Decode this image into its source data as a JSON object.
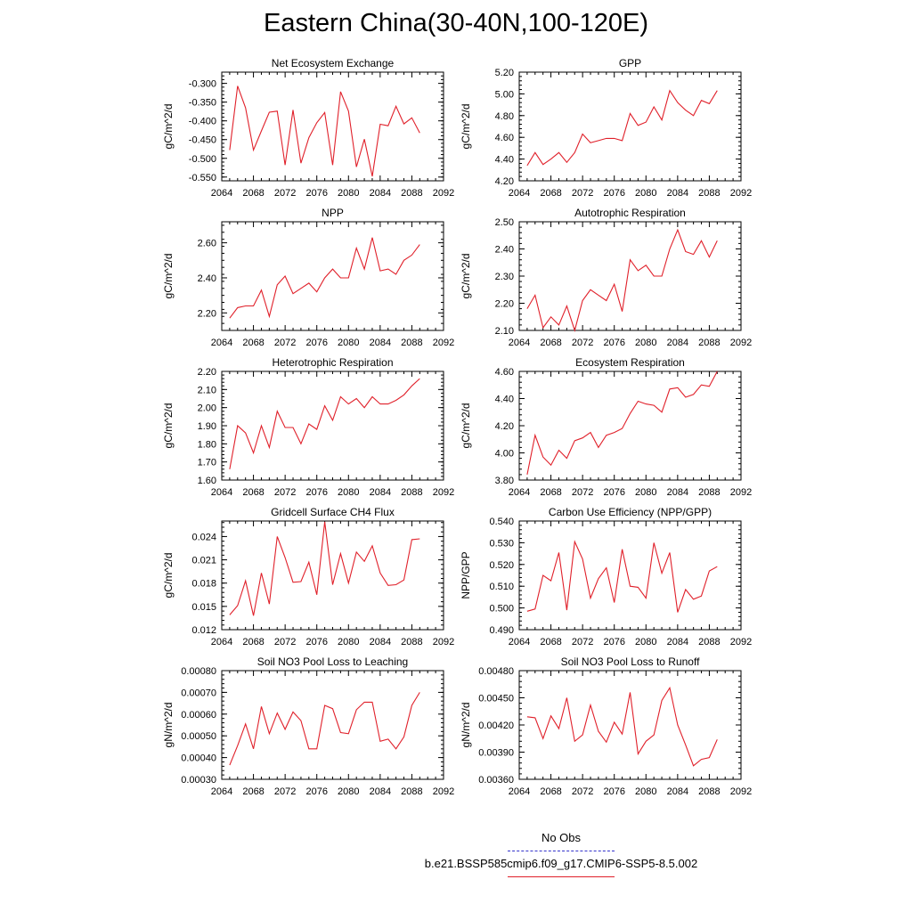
{
  "title": "Eastern China(30-40N,100-120E)",
  "legend": {
    "obs_label": "No Obs",
    "obs_color": "#3333cc",
    "model_label": "b.e21.BSSP585cmip6.f09_g17.CMIP6-SSP5-8.5.002",
    "model_color": "#e0202a"
  },
  "chart_data": [
    {
      "type": "line",
      "title": "Net Ecosystem Exchange",
      "ylabel": "gC/m^2/d",
      "xlim": [
        2064,
        2092
      ],
      "xticks": [
        "2064",
        "2068",
        "2072",
        "2076",
        "2080",
        "2084",
        "2088",
        "2092"
      ],
      "ylim": [
        -0.56,
        -0.27
      ],
      "yticks": [
        "-0.300",
        "-0.350",
        "-0.400",
        "-0.450",
        "-0.500",
        "-0.550"
      ],
      "ytick_values": [
        -0.3,
        -0.35,
        -0.4,
        -0.45,
        -0.5,
        -0.55
      ],
      "x": [
        2065,
        2066,
        2067,
        2068,
        2069,
        2070,
        2071,
        2072,
        2073,
        2074,
        2075,
        2076,
        2077,
        2078,
        2079,
        2080,
        2081,
        2082,
        2083,
        2084,
        2085,
        2086,
        2087,
        2088,
        2089
      ],
      "values": [
        -0.478,
        -0.307,
        -0.365,
        -0.478,
        -0.427,
        -0.377,
        -0.374,
        -0.518,
        -0.371,
        -0.513,
        -0.445,
        -0.405,
        -0.378,
        -0.518,
        -0.322,
        -0.374,
        -0.523,
        -0.449,
        -0.548,
        -0.409,
        -0.413,
        -0.361,
        -0.408,
        -0.392,
        -0.432
      ]
    },
    {
      "type": "line",
      "title": "GPP",
      "ylabel": "gC/m^2/d",
      "xlim": [
        2064,
        2092
      ],
      "xticks": [
        "2064",
        "2068",
        "2072",
        "2076",
        "2080",
        "2084",
        "2088",
        "2092"
      ],
      "ylim": [
        4.2,
        5.2
      ],
      "yticks": [
        "5.20",
        "5.00",
        "4.80",
        "4.60",
        "4.40",
        "4.20"
      ],
      "ytick_values": [
        5.2,
        5.0,
        4.8,
        4.6,
        4.4,
        4.2
      ],
      "x": [
        2065,
        2066,
        2067,
        2068,
        2069,
        2070,
        2071,
        2072,
        2073,
        2074,
        2075,
        2076,
        2077,
        2078,
        2079,
        2080,
        2081,
        2082,
        2083,
        2084,
        2085,
        2086,
        2087,
        2088,
        2089
      ],
      "values": [
        4.34,
        4.46,
        4.35,
        4.4,
        4.46,
        4.37,
        4.46,
        4.63,
        4.55,
        4.57,
        4.59,
        4.59,
        4.57,
        4.82,
        4.71,
        4.74,
        4.88,
        4.76,
        5.03,
        4.92,
        4.85,
        4.8,
        4.94,
        4.91,
        5.03
      ]
    },
    {
      "type": "line",
      "title": "NPP",
      "ylabel": "gC/m^2/d",
      "xlim": [
        2064,
        2092
      ],
      "xticks": [
        "2064",
        "2068",
        "2072",
        "2076",
        "2080",
        "2084",
        "2088",
        "2092"
      ],
      "ylim": [
        2.1,
        2.72
      ],
      "yticks": [
        "2.60",
        "2.40",
        "2.20"
      ],
      "ytick_values": [
        2.6,
        2.4,
        2.2
      ],
      "x": [
        2065,
        2066,
        2067,
        2068,
        2069,
        2070,
        2071,
        2072,
        2073,
        2074,
        2075,
        2076,
        2077,
        2078,
        2079,
        2080,
        2081,
        2082,
        2083,
        2084,
        2085,
        2086,
        2087,
        2088,
        2089
      ],
      "values": [
        2.17,
        2.23,
        2.24,
        2.24,
        2.33,
        2.18,
        2.36,
        2.41,
        2.31,
        2.34,
        2.37,
        2.32,
        2.4,
        2.45,
        2.4,
        2.4,
        2.57,
        2.45,
        2.63,
        2.44,
        2.45,
        2.42,
        2.5,
        2.53,
        2.59
      ]
    },
    {
      "type": "line",
      "title": "Autotrophic Respiration",
      "ylabel": "gC/m^2/d",
      "xlim": [
        2064,
        2092
      ],
      "xticks": [
        "2064",
        "2068",
        "2072",
        "2076",
        "2080",
        "2084",
        "2088",
        "2092"
      ],
      "ylim": [
        2.1,
        2.5
      ],
      "yticks": [
        "2.50",
        "2.40",
        "2.30",
        "2.20",
        "2.10"
      ],
      "ytick_values": [
        2.5,
        2.4,
        2.3,
        2.2,
        2.1
      ],
      "x": [
        2065,
        2066,
        2067,
        2068,
        2069,
        2070,
        2071,
        2072,
        2073,
        2074,
        2075,
        2076,
        2077,
        2078,
        2079,
        2080,
        2081,
        2082,
        2083,
        2084,
        2085,
        2086,
        2087,
        2088,
        2089
      ],
      "values": [
        2.18,
        2.23,
        2.11,
        2.15,
        2.12,
        2.19,
        2.1,
        2.21,
        2.25,
        2.23,
        2.21,
        2.27,
        2.17,
        2.36,
        2.32,
        2.34,
        2.3,
        2.3,
        2.4,
        2.47,
        2.39,
        2.38,
        2.43,
        2.37,
        2.43
      ]
    },
    {
      "type": "line",
      "title": "Heterotrophic Respiration",
      "ylabel": "gC/m^2/d",
      "xlim": [
        2064,
        2092
      ],
      "xticks": [
        "2064",
        "2068",
        "2072",
        "2076",
        "2080",
        "2084",
        "2088",
        "2092"
      ],
      "ylim": [
        1.6,
        2.2
      ],
      "yticks": [
        "2.20",
        "2.10",
        "2.00",
        "1.90",
        "1.80",
        "1.70",
        "1.60"
      ],
      "ytick_values": [
        2.2,
        2.1,
        2.0,
        1.9,
        1.8,
        1.7,
        1.6
      ],
      "x": [
        2065,
        2066,
        2067,
        2068,
        2069,
        2070,
        2071,
        2072,
        2073,
        2074,
        2075,
        2076,
        2077,
        2078,
        2079,
        2080,
        2081,
        2082,
        2083,
        2084,
        2085,
        2086,
        2087,
        2088,
        2089
      ],
      "values": [
        1.66,
        1.9,
        1.86,
        1.75,
        1.9,
        1.78,
        1.98,
        1.89,
        1.89,
        1.8,
        1.91,
        1.88,
        2.01,
        1.93,
        2.06,
        2.02,
        2.05,
        2.0,
        2.06,
        2.02,
        2.02,
        2.04,
        2.07,
        2.12,
        2.16
      ]
    },
    {
      "type": "line",
      "title": "Ecosystem Respiration",
      "ylabel": "gC/m^2/d",
      "xlim": [
        2064,
        2092
      ],
      "xticks": [
        "2064",
        "2068",
        "2072",
        "2076",
        "2080",
        "2084",
        "2088",
        "2092"
      ],
      "ylim": [
        3.8,
        4.6
      ],
      "yticks": [
        "4.60",
        "4.40",
        "4.20",
        "4.00",
        "3.80"
      ],
      "ytick_values": [
        4.6,
        4.4,
        4.2,
        4.0,
        3.8
      ],
      "x": [
        2065,
        2066,
        2067,
        2068,
        2069,
        2070,
        2071,
        2072,
        2073,
        2074,
        2075,
        2076,
        2077,
        2078,
        2079,
        2080,
        2081,
        2082,
        2083,
        2084,
        2085,
        2086,
        2087,
        2088,
        2089
      ],
      "values": [
        3.84,
        4.13,
        3.97,
        3.91,
        4.02,
        3.96,
        4.09,
        4.11,
        4.15,
        4.04,
        4.13,
        4.15,
        4.18,
        4.29,
        4.38,
        4.36,
        4.35,
        4.3,
        4.47,
        4.48,
        4.41,
        4.43,
        4.5,
        4.49,
        4.6
      ]
    },
    {
      "type": "line",
      "title": "Gridcell Surface CH4 Flux",
      "ylabel": "gC/m^2/d",
      "xlim": [
        2064,
        2092
      ],
      "xticks": [
        "2064",
        "2068",
        "2072",
        "2076",
        "2080",
        "2084",
        "2088",
        "2092"
      ],
      "ylim": [
        0.012,
        0.026
      ],
      "yticks": [
        "0.024",
        "0.021",
        "0.018",
        "0.015",
        "0.012"
      ],
      "ytick_values": [
        0.024,
        0.021,
        0.018,
        0.015,
        0.012
      ],
      "x": [
        2065,
        2066,
        2067,
        2068,
        2069,
        2070,
        2071,
        2072,
        2073,
        2074,
        2075,
        2076,
        2077,
        2078,
        2079,
        2080,
        2081,
        2082,
        2083,
        2084,
        2085,
        2086,
        2087,
        2088,
        2089
      ],
      "values": [
        0.0139,
        0.0151,
        0.0183,
        0.0138,
        0.0193,
        0.0153,
        0.024,
        0.0213,
        0.0181,
        0.0182,
        0.0207,
        0.0165,
        0.0259,
        0.0178,
        0.0218,
        0.018,
        0.022,
        0.0208,
        0.0228,
        0.0193,
        0.0177,
        0.0178,
        0.0184,
        0.0236,
        0.0237
      ]
    },
    {
      "type": "line",
      "title": "Carbon Use Efficiency (NPP/GPP)",
      "ylabel": "NPP/GPP",
      "xlim": [
        2064,
        2092
      ],
      "xticks": [
        "2064",
        "2068",
        "2072",
        "2076",
        "2080",
        "2084",
        "2088",
        "2092"
      ],
      "ylim": [
        0.49,
        0.54
      ],
      "yticks": [
        "0.540",
        "0.530",
        "0.520",
        "0.510",
        "0.500",
        "0.490"
      ],
      "ytick_values": [
        0.54,
        0.53,
        0.52,
        0.51,
        0.5,
        0.49
      ],
      "x": [
        2065,
        2066,
        2067,
        2068,
        2069,
        2070,
        2071,
        2072,
        2073,
        2074,
        2075,
        2076,
        2077,
        2078,
        2079,
        2080,
        2081,
        2082,
        2083,
        2084,
        2085,
        2086,
        2087,
        2088,
        2089
      ],
      "values": [
        0.4985,
        0.4995,
        0.515,
        0.5125,
        0.5255,
        0.499,
        0.5305,
        0.5225,
        0.5045,
        0.5135,
        0.5185,
        0.5025,
        0.527,
        0.51,
        0.5095,
        0.5045,
        0.53,
        0.516,
        0.5255,
        0.498,
        0.5085,
        0.504,
        0.5055,
        0.517,
        0.519
      ]
    },
    {
      "type": "line",
      "title": "Soil NO3 Pool Loss to Leaching",
      "ylabel": "gN/m^2/d",
      "xlim": [
        2064,
        2092
      ],
      "xticks": [
        "2064",
        "2068",
        "2072",
        "2076",
        "2080",
        "2084",
        "2088",
        "2092"
      ],
      "ylim": [
        0.0003,
        0.0008
      ],
      "yticks": [
        "0.00080",
        "0.00070",
        "0.00060",
        "0.00050",
        "0.00040",
        "0.00030"
      ],
      "ytick_values": [
        0.0008,
        0.0007,
        0.0006,
        0.0005,
        0.0004,
        0.0003
      ],
      "x": [
        2065,
        2066,
        2067,
        2068,
        2069,
        2070,
        2071,
        2072,
        2073,
        2074,
        2075,
        2076,
        2077,
        2078,
        2079,
        2080,
        2081,
        2082,
        2083,
        2084,
        2085,
        2086,
        2087,
        2088,
        2089
      ],
      "values": [
        0.000365,
        0.000455,
        0.000555,
        0.00044,
        0.000635,
        0.00051,
        0.000605,
        0.00053,
        0.00061,
        0.00057,
        0.00044,
        0.00044,
        0.00064,
        0.000625,
        0.000515,
        0.00051,
        0.00062,
        0.000655,
        0.000655,
        0.000475,
        0.000485,
        0.00044,
        0.000495,
        0.00064,
        0.0007
      ]
    },
    {
      "type": "line",
      "title": "Soil NO3 Pool Loss to Runoff",
      "ylabel": "gN/m^2/d",
      "xlim": [
        2064,
        2092
      ],
      "xticks": [
        "2064",
        "2068",
        "2072",
        "2076",
        "2080",
        "2084",
        "2088",
        "2092"
      ],
      "ylim": [
        0.0036,
        0.0048
      ],
      "yticks": [
        "0.00480",
        "0.00450",
        "0.00420",
        "0.00390",
        "0.00360"
      ],
      "ytick_values": [
        0.0048,
        0.0045,
        0.0042,
        0.0039,
        0.0036
      ],
      "x": [
        2065,
        2066,
        2067,
        2068,
        2069,
        2070,
        2071,
        2072,
        2073,
        2074,
        2075,
        2076,
        2077,
        2078,
        2079,
        2080,
        2081,
        2082,
        2083,
        2084,
        2085,
        2086,
        2087,
        2088,
        2089
      ],
      "values": [
        0.00429,
        0.00428,
        0.00405,
        0.0043,
        0.00416,
        0.0045,
        0.00402,
        0.00409,
        0.00442,
        0.00413,
        0.00401,
        0.00423,
        0.0041,
        0.00456,
        0.00388,
        0.00402,
        0.00409,
        0.00447,
        0.00461,
        0.0042,
        0.00398,
        0.00375,
        0.00382,
        0.00384,
        0.00404
      ]
    }
  ]
}
